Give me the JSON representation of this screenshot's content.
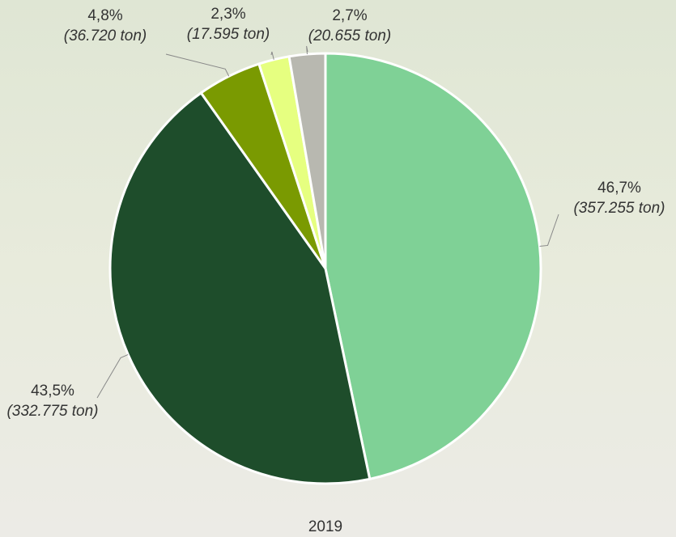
{
  "chart_data": {
    "type": "pie",
    "title": "2019",
    "values": [
      46.7,
      43.5,
      4.8,
      2.3,
      2.7
    ],
    "value_labels": [
      "46,7%",
      "43,5%",
      "4,8%",
      "2,3%",
      "2,7%"
    ],
    "detail_labels": [
      "(357.255 ton)",
      "(332.775 ton)",
      "(36.720 ton)",
      "(17.595 ton)",
      "(20.655 ton)"
    ],
    "colors": [
      "#7fd196",
      "#1e4d2b",
      "#7a9a01",
      "#e6ff80",
      "#b8b8b0"
    ]
  }
}
